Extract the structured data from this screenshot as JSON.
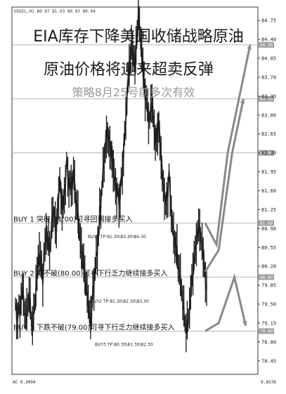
{
  "header_text": "USOIL,H1 80.97 81.03 80.93 80.94",
  "title_line1": "EIA库存下降美国收储战略原油",
  "title_line2": "原油价格将迎来超卖反弹",
  "subtitle": "策略8月25号前多次有效",
  "indicator_left": "AC 0.3094",
  "indicator_right": "0.8578",
  "colors": {
    "price": "#1f1f1f",
    "level_line": "#b5b5b5",
    "arrow": "#888888",
    "flag": "#9d9d9d"
  },
  "chart_data": {
    "type": "line",
    "title": "",
    "xlabel": "",
    "ylabel": "",
    "ylim": [
      78.2,
      85.0
    ],
    "yticks": [
      84.75,
      84.4,
      84.05,
      83.7,
      83.35,
      83.0,
      82.65,
      82.3,
      81.95,
      81.6,
      81.25,
      80.9,
      80.55,
      80.2,
      79.85,
      79.5,
      79.15,
      78.8,
      78.45
    ],
    "grid": false,
    "series": [
      {
        "values": [
          79.5,
          79.3,
          79.8,
          79.2,
          79.6,
          79.0,
          79.7,
          80.4,
          80.0,
          80.9,
          80.5,
          81.2,
          81.0,
          81.8,
          81.3,
          82.1,
          81.6,
          81.9,
          81.2,
          80.6,
          80.1,
          79.6,
          79.1,
          79.9,
          80.6,
          81.4,
          82.2,
          82.8,
          82.4,
          81.9,
          81.4,
          81.7,
          82.6,
          83.6,
          84.3,
          83.8,
          84.8,
          84.0,
          83.4,
          82.9,
          83.3,
          82.5,
          82.9,
          82.0,
          81.4,
          81.8,
          80.9,
          80.5,
          80.1,
          79.5,
          78.9,
          79.4,
          80.1,
          80.7,
          81.0,
          80.4,
          79.8
        ]
      }
    ],
    "levels": [
      {
        "value": 84.3,
        "flag": "84.30",
        "label": ""
      },
      {
        "value": 83.3,
        "flag": "83.30",
        "label": ""
      },
      {
        "value": 82.3,
        "flag": "82.30",
        "label": ""
      },
      {
        "value": 81.0,
        "flag": "81.00",
        "label": "BUY 1 突破(81.00)可寻回调接多买入"
      },
      {
        "value": 80.0,
        "flag": "80.00",
        "label": "BUY 2 跌不破(80.00)可寻下行乏力继续接多买入"
      },
      {
        "value": 79.0,
        "flag": "79.00",
        "label": "BUY 3 下跌不破(79.00)可寻下行乏力继续接多买入"
      }
    ],
    "targets": [
      {
        "value": 80.75,
        "label": "BUY1 TP:81.30\\83.30\\84.30"
      },
      {
        "value": 79.55,
        "label": "BUY2 TP:81.30\\82.30\\83.30"
      },
      {
        "value": 78.75,
        "label": "BUY3 TP:80.30\\81.30\\82.30"
      }
    ],
    "arrows": [
      {
        "points": [
          [
            0.0,
            81.0
          ],
          [
            0.25,
            80.6
          ],
          [
            0.5,
            82.3
          ],
          [
            0.75,
            83.3
          ],
          [
            1.0,
            84.3
          ]
        ]
      },
      {
        "points": [
          [
            0.0,
            80.1
          ],
          [
            0.3,
            80.5
          ],
          [
            0.6,
            82.3
          ],
          [
            0.85,
            83.3
          ]
        ]
      },
      {
        "points": [
          [
            0.0,
            79.0
          ],
          [
            0.3,
            79.15
          ],
          [
            0.65,
            80.0
          ],
          [
            0.9,
            79.1
          ]
        ]
      }
    ]
  }
}
